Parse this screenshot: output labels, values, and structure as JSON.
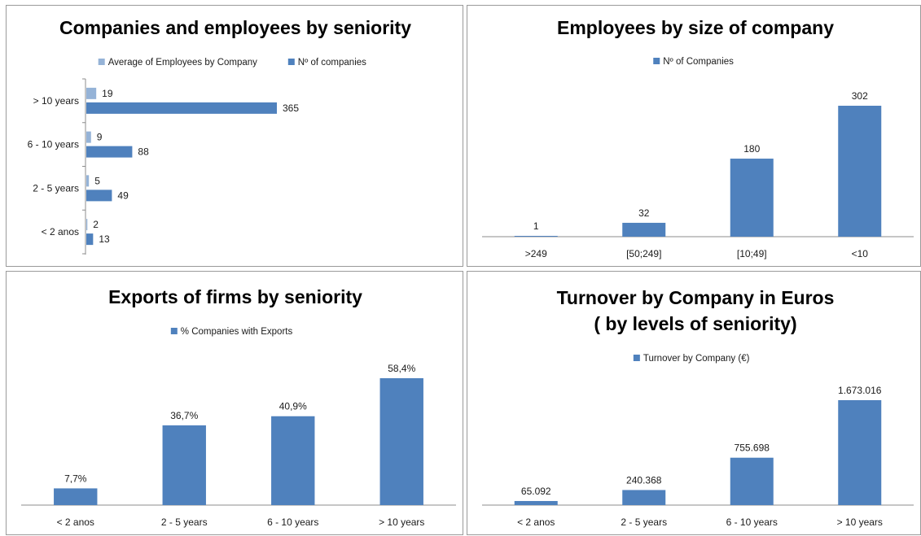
{
  "colors": {
    "dark": "#4f81bd",
    "light": "#95b3d7"
  },
  "chart_data": [
    {
      "type": "bar",
      "orientation": "horizontal",
      "title": "Companies and employees by seniority",
      "categories": [
        "> 10 years",
        "6  - 10 years",
        "2  - 5 years",
        "< 2 anos"
      ],
      "series": [
        {
          "name": "Average of Employees by Company",
          "values": [
            19,
            9,
            5,
            2
          ],
          "labels": [
            "19",
            "9",
            "5",
            "2"
          ],
          "color": "#95b3d7"
        },
        {
          "name": "Nº of companies",
          "values": [
            365,
            88,
            49,
            13
          ],
          "labels": [
            "365",
            "88",
            "49",
            "13"
          ],
          "color": "#4f81bd"
        }
      ],
      "legend_position": "top"
    },
    {
      "type": "bar",
      "title": "Employees by size of company",
      "categories": [
        ">249",
        "[50;249]",
        "[10;49]",
        "<10"
      ],
      "series": [
        {
          "name": "Nº of Companies",
          "values": [
            1,
            32,
            180,
            302
          ],
          "labels": [
            "1",
            "32",
            "180",
            "302"
          ],
          "color": "#4f81bd"
        }
      ],
      "legend_position": "top"
    },
    {
      "type": "bar",
      "title": "Exports of firms by seniority",
      "categories": [
        "< 2 anos",
        "2  - 5 years",
        "6  - 10 years",
        "> 10 years"
      ],
      "series": [
        {
          "name": "% Companies with Exports",
          "values": [
            7.7,
            36.7,
            40.9,
            58.4
          ],
          "labels": [
            "7,7%",
            "36,7%",
            "40,9%",
            "58,4%"
          ],
          "color": "#4f81bd"
        }
      ],
      "legend_position": "top"
    },
    {
      "type": "bar",
      "title": [
        "Turnover by Company in Euros",
        "( by levels of seniority)"
      ],
      "categories": [
        "< 2 anos",
        "2  - 5 years",
        "6  - 10 years",
        "> 10 years"
      ],
      "series": [
        {
          "name": "Turnover by Company (€)",
          "values": [
            65092,
            240368,
            755698,
            1673016
          ],
          "labels": [
            "65.092",
            "240.368",
            "755.698",
            "1.673.016"
          ],
          "color": "#4f81bd"
        }
      ],
      "legend_position": "top"
    }
  ]
}
